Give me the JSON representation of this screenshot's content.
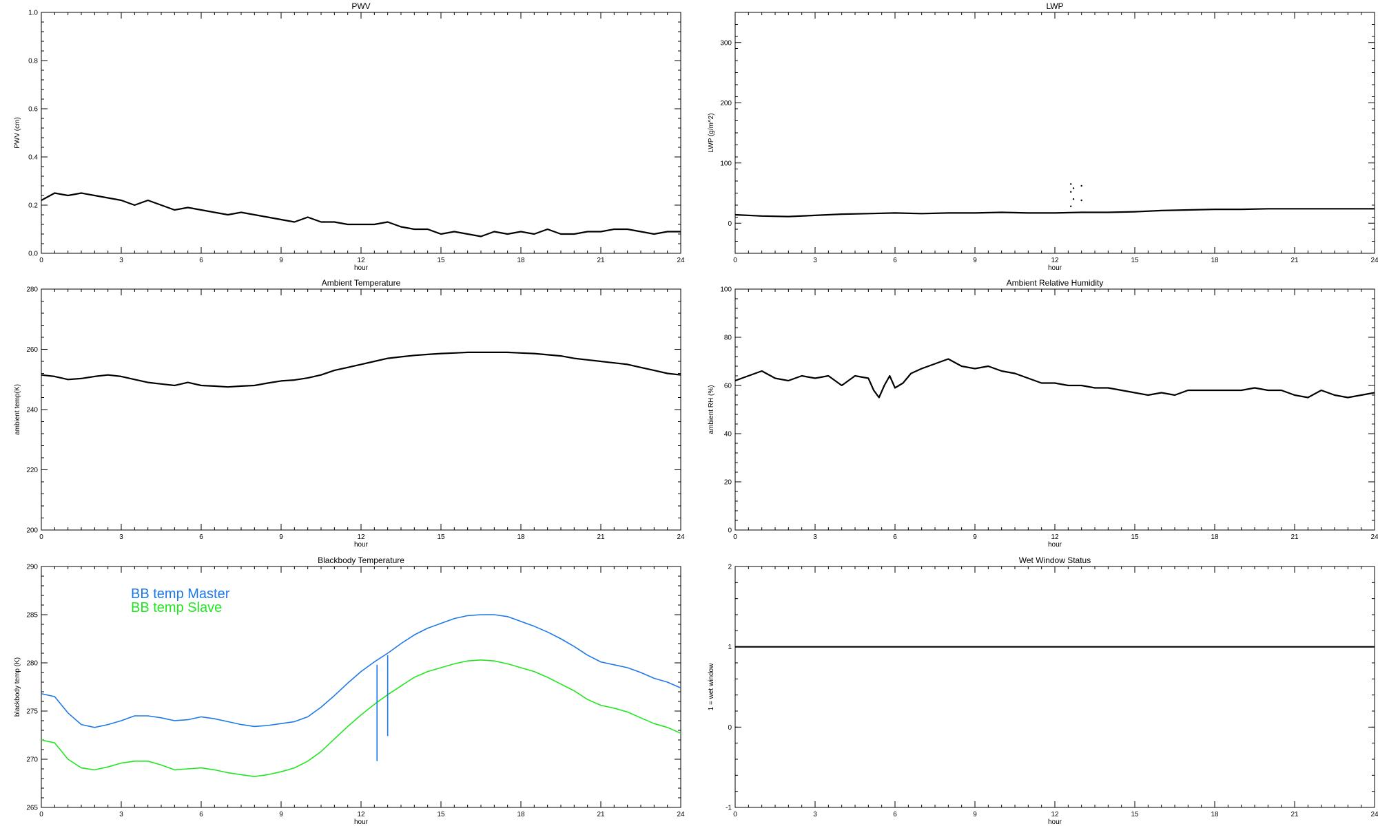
{
  "chart_data": [
    {
      "type": "line",
      "title": "PWV",
      "xlabel": "hour",
      "ylabel": "PWV (cm)",
      "xlim": [
        0,
        24
      ],
      "ylim": [
        0.0,
        1.0
      ],
      "xticks": [
        0,
        3,
        6,
        9,
        12,
        15,
        18,
        21,
        24
      ],
      "yticks": [
        "0.0",
        "0.2",
        "0.4",
        "0.6",
        "0.8",
        "1.0"
      ],
      "grid": false,
      "series": [
        {
          "color": "#000000",
          "x": [
            0,
            0.5,
            1,
            1.5,
            2,
            2.5,
            3,
            3.5,
            4,
            4.5,
            5,
            5.5,
            6,
            6.5,
            7,
            7.5,
            8,
            8.5,
            9,
            9.5,
            10,
            10.5,
            11,
            11.5,
            12,
            12.5,
            13,
            13.5,
            14,
            14.5,
            15,
            15.5,
            16,
            16.5,
            17,
            17.5,
            18,
            18.5,
            19,
            19.5,
            20,
            20.5,
            21,
            21.5,
            22,
            22.5,
            23,
            23.5,
            24
          ],
          "y": [
            0.22,
            0.25,
            0.24,
            0.25,
            0.24,
            0.23,
            0.22,
            0.2,
            0.22,
            0.2,
            0.18,
            0.19,
            0.18,
            0.17,
            0.16,
            0.17,
            0.16,
            0.15,
            0.14,
            0.13,
            0.15,
            0.13,
            0.13,
            0.12,
            0.12,
            0.12,
            0.13,
            0.11,
            0.1,
            0.1,
            0.08,
            0.09,
            0.08,
            0.07,
            0.09,
            0.08,
            0.09,
            0.08,
            0.1,
            0.08,
            0.08,
            0.09,
            0.09,
            0.1,
            0.1,
            0.09,
            0.08,
            0.09,
            0.09
          ]
        }
      ]
    },
    {
      "type": "line",
      "title": "LWP",
      "xlabel": "hour",
      "ylabel": "LWP (g/m^2)",
      "xlim": [
        0,
        24
      ],
      "ylim": [
        -50,
        350
      ],
      "xticks": [
        0,
        3,
        6,
        9,
        12,
        15,
        18,
        21,
        24
      ],
      "yticks": [
        "0",
        "100",
        "200",
        "300"
      ],
      "grid": false,
      "series": [
        {
          "color": "#000000",
          "x": [
            0,
            1,
            2,
            3,
            4,
            5,
            6,
            7,
            8,
            9,
            10,
            11,
            12,
            13,
            14,
            15,
            16,
            17,
            18,
            19,
            20,
            21,
            22,
            23,
            24
          ],
          "y": [
            14,
            12,
            11,
            13,
            15,
            16,
            17,
            16,
            17,
            17,
            18,
            17,
            17,
            18,
            18,
            19,
            21,
            22,
            23,
            23,
            24,
            24,
            24,
            24,
            24
          ]
        }
      ],
      "outliers": {
        "x": [
          12.6,
          12.6,
          12.7,
          12.7,
          13.0,
          13.0,
          12.6
        ],
        "y": [
          65,
          52,
          40,
          58,
          62,
          38,
          28
        ]
      }
    },
    {
      "type": "line",
      "title": "Ambient Temperature",
      "xlabel": "hour",
      "ylabel": "ambient temp(K)",
      "xlim": [
        0,
        24
      ],
      "ylim": [
        200,
        280
      ],
      "xticks": [
        0,
        3,
        6,
        9,
        12,
        15,
        18,
        21,
        24
      ],
      "yticks": [
        "200",
        "220",
        "240",
        "260",
        "280"
      ],
      "grid": false,
      "series": [
        {
          "color": "#000000",
          "x": [
            0,
            0.5,
            1,
            1.5,
            2,
            2.5,
            3,
            3.5,
            4,
            4.5,
            5,
            5.5,
            6,
            6.5,
            7,
            7.5,
            8,
            8.5,
            9,
            9.5,
            10,
            10.5,
            11,
            11.5,
            12,
            12.5,
            13,
            13.5,
            14,
            14.5,
            15,
            15.5,
            16,
            16.5,
            17,
            17.5,
            18,
            18.5,
            19,
            19.5,
            20,
            20.5,
            21,
            21.5,
            22,
            22.5,
            23,
            23.5,
            24
          ],
          "y": [
            251.5,
            251,
            250,
            250.3,
            251,
            251.5,
            251,
            250,
            249,
            248.5,
            248,
            249,
            248,
            247.8,
            247.5,
            247.8,
            248,
            248.8,
            249.5,
            249.8,
            250.5,
            251.5,
            253,
            254,
            255,
            256,
            257,
            257.5,
            258,
            258.3,
            258.6,
            258.8,
            259,
            259,
            259,
            259,
            258.8,
            258.6,
            258.2,
            257.8,
            257,
            256.5,
            256,
            255.5,
            255,
            254,
            253,
            252,
            251.5
          ]
        }
      ]
    },
    {
      "type": "line",
      "title": "Ambient Relative Humidity",
      "xlabel": "hour",
      "ylabel": "ambient RH (%)",
      "xlim": [
        0,
        24
      ],
      "ylim": [
        0,
        100
      ],
      "xticks": [
        0,
        3,
        6,
        9,
        12,
        15,
        18,
        21,
        24
      ],
      "yticks": [
        "0",
        "20",
        "40",
        "60",
        "80",
        "100"
      ],
      "grid": false,
      "series": [
        {
          "color": "#000000",
          "x": [
            0,
            0.5,
            1,
            1.5,
            2,
            2.5,
            3,
            3.5,
            4,
            4.5,
            5,
            5.2,
            5.4,
            5.6,
            5.8,
            6,
            6.3,
            6.6,
            7,
            7.5,
            8,
            8.5,
            9,
            9.5,
            10,
            10.5,
            11,
            11.5,
            12,
            12.5,
            13,
            13.5,
            14,
            14.5,
            15,
            15.5,
            16,
            16.5,
            17,
            17.5,
            18,
            18.5,
            19,
            19.5,
            20,
            20.5,
            21,
            21.5,
            22,
            22.5,
            23,
            23.5,
            24
          ],
          "y": [
            62,
            64,
            66,
            63,
            62,
            64,
            63,
            64,
            60,
            64,
            63,
            58,
            55,
            60,
            64,
            59,
            61,
            65,
            67,
            69,
            71,
            68,
            67,
            68,
            66,
            65,
            63,
            61,
            61,
            60,
            60,
            59,
            59,
            58,
            57,
            56,
            57,
            56,
            58,
            58,
            58,
            58,
            58,
            59,
            58,
            58,
            56,
            55,
            58,
            56,
            55,
            56,
            57
          ]
        }
      ]
    },
    {
      "type": "line",
      "title": "Blackbody Temperature",
      "xlabel": "hour",
      "ylabel": "blackbody temp (K)",
      "xlim": [
        0,
        24
      ],
      "ylim": [
        265,
        290
      ],
      "xticks": [
        0,
        3,
        6,
        9,
        12,
        15,
        18,
        21,
        24
      ],
      "yticks": [
        "265",
        "270",
        "275",
        "280",
        "285",
        "290"
      ],
      "grid": false,
      "legend_position": "top-left",
      "series": [
        {
          "name": "BB temp Master",
          "color": "#1e78e6",
          "x": [
            0,
            0.5,
            1,
            1.5,
            2,
            2.5,
            3,
            3.5,
            4,
            4.5,
            5,
            5.5,
            6,
            6.5,
            7,
            7.5,
            8,
            8.5,
            9,
            9.5,
            10,
            10.5,
            11,
            11.5,
            12,
            12.5,
            13,
            13.5,
            14,
            14.5,
            15,
            15.5,
            16,
            16.5,
            17,
            17.5,
            18,
            18.5,
            19,
            19.5,
            20,
            20.5,
            21,
            21.5,
            22,
            22.5,
            23,
            23.5,
            24
          ],
          "y": [
            276.8,
            276.5,
            274.8,
            273.6,
            273.3,
            273.6,
            274.0,
            274.5,
            274.5,
            274.3,
            274.0,
            274.1,
            274.4,
            274.2,
            273.9,
            273.6,
            273.4,
            273.5,
            273.7,
            273.9,
            274.4,
            275.4,
            276.6,
            277.9,
            279.1,
            280.1,
            281.0,
            282.0,
            282.9,
            283.6,
            284.1,
            284.6,
            284.9,
            285.0,
            285.0,
            284.8,
            284.3,
            283.8,
            283.2,
            282.5,
            281.7,
            280.8,
            280.1,
            279.8,
            279.5,
            279.0,
            278.4,
            278.0,
            277.4
          ]
        },
        {
          "name": "BB temp Slave",
          "color": "#22e622",
          "x": [
            0,
            0.5,
            1,
            1.5,
            2,
            2.5,
            3,
            3.5,
            4,
            4.5,
            5,
            5.5,
            6,
            6.5,
            7,
            7.5,
            8,
            8.5,
            9,
            9.5,
            10,
            10.5,
            11,
            11.5,
            12,
            12.5,
            13,
            13.5,
            14,
            14.5,
            15,
            15.5,
            16,
            16.5,
            17,
            17.5,
            18,
            18.5,
            19,
            19.5,
            20,
            20.5,
            21,
            21.5,
            22,
            22.5,
            23,
            23.5,
            24
          ],
          "y": [
            272.0,
            271.7,
            270.0,
            269.1,
            268.9,
            269.2,
            269.6,
            269.8,
            269.8,
            269.4,
            268.9,
            269.0,
            269.1,
            268.9,
            268.6,
            268.4,
            268.2,
            268.4,
            268.7,
            269.1,
            269.8,
            270.8,
            272.1,
            273.4,
            274.6,
            275.7,
            276.7,
            277.6,
            278.5,
            279.1,
            279.5,
            279.9,
            280.2,
            280.3,
            280.2,
            279.9,
            279.5,
            279.1,
            278.5,
            277.8,
            277.1,
            276.2,
            275.6,
            275.3,
            274.9,
            274.3,
            273.7,
            273.3,
            272.7
          ]
        }
      ],
      "spikes": [
        {
          "x": 12.6,
          "y_from": 279.8,
          "y_to": 269.8,
          "color": "#1e78e6"
        },
        {
          "x": 13.0,
          "y_from": 280.8,
          "y_to": 272.4,
          "color": "#1e78e6"
        }
      ]
    },
    {
      "type": "line",
      "title": "Wet Window Status",
      "xlabel": "hour",
      "ylabel": "1 = wet window",
      "xlim": [
        0,
        24
      ],
      "ylim": [
        -1,
        2
      ],
      "xticks": [
        0,
        3,
        6,
        9,
        12,
        15,
        18,
        21,
        24
      ],
      "yticks": [
        "-1",
        "0",
        "1",
        "2"
      ],
      "grid": false,
      "series": [
        {
          "color": "#000000",
          "x": [
            0,
            24
          ],
          "y": [
            1,
            1
          ]
        }
      ]
    }
  ]
}
